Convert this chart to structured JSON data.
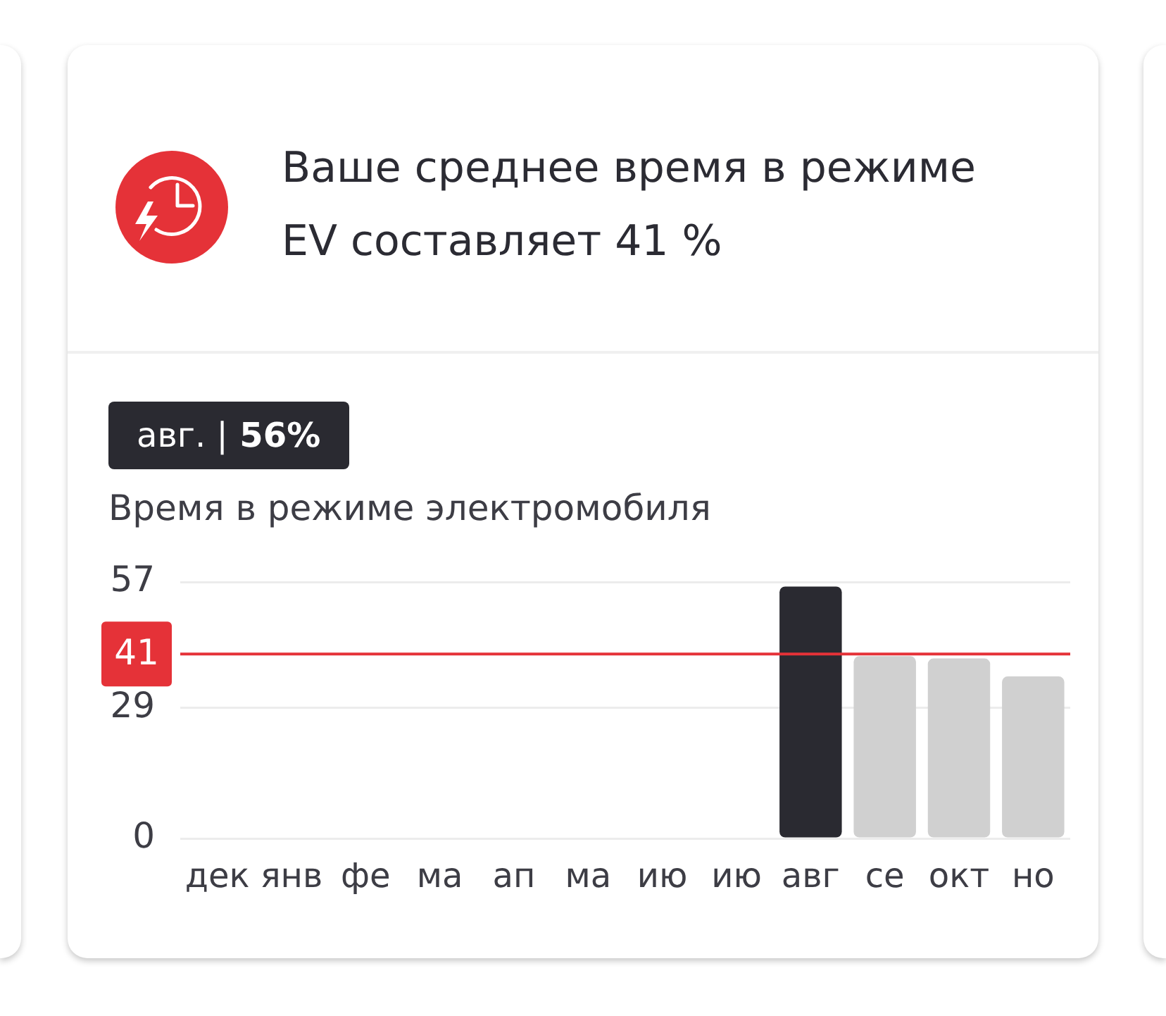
{
  "chart_data": {
    "type": "bar",
    "title": "Ваше среднее время в режиме EV составляет 41 %",
    "ylabel": "Время в режиме электромобиля",
    "categories": [
      "дек",
      "янв",
      "фе",
      "ма",
      "ап",
      "ма",
      "ию",
      "ию",
      "авг",
      "се",
      "окт",
      "но"
    ],
    "values": [
      null,
      null,
      null,
      null,
      null,
      null,
      null,
      null,
      56,
      40.5,
      40,
      36
    ],
    "colors": [
      "#d0d0d0",
      "#d0d0d0",
      "#d0d0d0",
      "#d0d0d0",
      "#d0d0d0",
      "#d0d0d0",
      "#d0d0d0",
      "#d0d0d0",
      "#2a2a31",
      "#d0d0d0",
      "#d0d0d0",
      "#d0d0d0"
    ],
    "ylim": [
      0,
      57
    ],
    "yticks": [
      0,
      29,
      57
    ],
    "grid": "y",
    "ref_lines": [
      {
        "axis": "y",
        "value": 41,
        "label": "41",
        "color": "#e53238"
      }
    ],
    "annotations": [
      "авг. | 56%"
    ]
  }
}
